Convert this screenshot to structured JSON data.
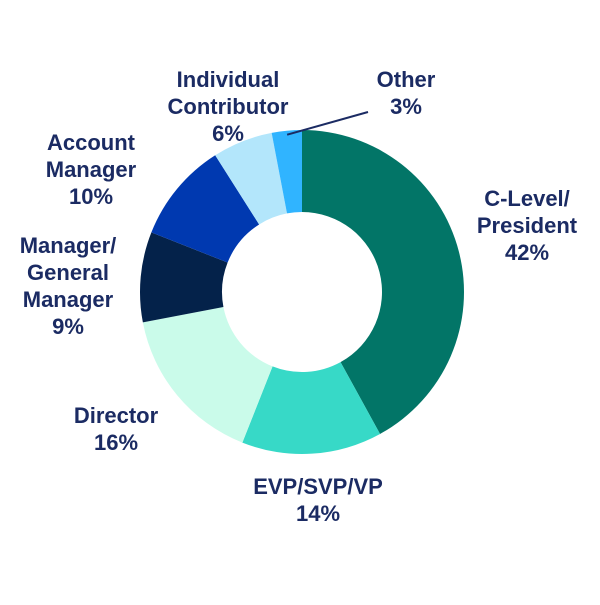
{
  "chart_data": {
    "type": "pie",
    "variant": "donut",
    "title": "",
    "legend": "none",
    "slices": [
      {
        "label_lines": [
          "C-Level/",
          "President"
        ],
        "percent_label": "42%",
        "value": 42,
        "color": "#027567"
      },
      {
        "label_lines": [
          "EVP/SVP/VP"
        ],
        "percent_label": "14%",
        "value": 14,
        "color": "#37d9c7"
      },
      {
        "label_lines": [
          "Director"
        ],
        "percent_label": "16%",
        "value": 16,
        "color": "#cafbea"
      },
      {
        "label_lines": [
          "Manager/",
          "General",
          "Manager"
        ],
        "percent_label": "9%",
        "value": 9,
        "color": "#04224a"
      },
      {
        "label_lines": [
          "Account",
          "Manager"
        ],
        "percent_label": "10%",
        "value": 10,
        "color": "#0039b0"
      },
      {
        "label_lines": [
          "Individual",
          "Contributor"
        ],
        "percent_label": "6%",
        "value": 6,
        "color": "#b3e6fb"
      },
      {
        "label_lines": [
          "Other"
        ],
        "percent_label": "3%",
        "value": 3,
        "color": "#30b4ff"
      }
    ],
    "label_color": "#1b2b63",
    "leader_line_for": "Other"
  }
}
